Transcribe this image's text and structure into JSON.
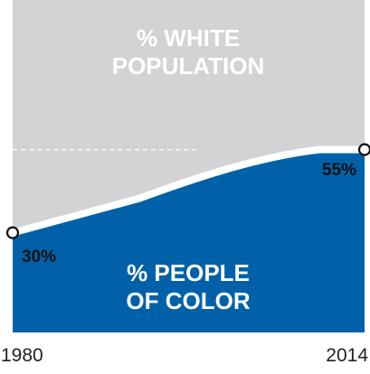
{
  "chart_data": {
    "type": "area",
    "x": [
      1980,
      2014
    ],
    "series": [
      {
        "name": "% PEOPLE OF COLOR",
        "values": [
          30,
          55
        ],
        "color": "#0061a8"
      }
    ],
    "background_series": {
      "name": "% WHITE POPULATION",
      "color": "#d3d3d3"
    },
    "ylim": [
      0,
      100
    ],
    "reference_line": 55,
    "value_labels": [
      "30%",
      "55%"
    ],
    "tick_labels": [
      "1980",
      "2014"
    ],
    "area_labels": {
      "upper": [
        "% WHITE",
        "POPULATION"
      ],
      "lower": [
        "% PEOPLE",
        "OF COLOR"
      ]
    },
    "colors": {
      "people_of_color": "#0061a8",
      "white_population": "#d3d3d3",
      "separator": "#ffffff",
      "marker_fill": "#ffffff",
      "marker_stroke": "#111111"
    }
  }
}
